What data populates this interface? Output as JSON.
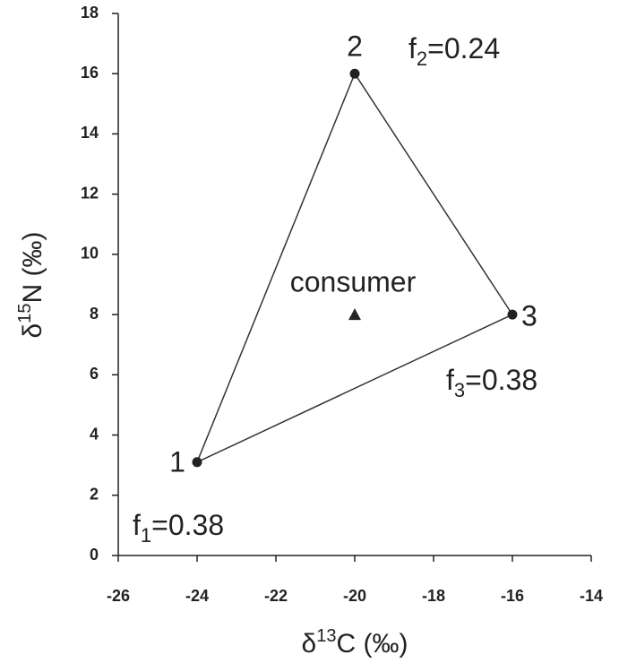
{
  "chart_data": {
    "type": "scatter",
    "x_label": {
      "symbol": "δ",
      "sup": "13",
      "rest": "C (‰)"
    },
    "y_label": {
      "symbol": "δ",
      "sup": "15",
      "rest": "N (‰)"
    },
    "xlim": [
      -26,
      -14
    ],
    "xticks": [
      -26,
      -24,
      -22,
      -20,
      -18,
      -16,
      -14
    ],
    "ylim": [
      0,
      18
    ],
    "yticks": [
      0,
      2,
      4,
      6,
      8,
      10,
      12,
      14,
      16,
      18
    ],
    "sources": {
      "labels": [
        "1",
        "2",
        "3"
      ],
      "x": [
        -24,
        -20,
        -16
      ],
      "y": [
        3.1,
        16,
        8
      ],
      "color": "#222222"
    },
    "consumer": {
      "label": "consumer",
      "x": -20,
      "y": 8,
      "color": "#222222"
    },
    "annotations": [
      {
        "symbol": "f",
        "sub": "1",
        "text": "=0.38"
      },
      {
        "symbol": "f",
        "sub": "2",
        "text": "=0.24"
      },
      {
        "symbol": "f",
        "sub": "3",
        "text": "=0.38"
      }
    ]
  }
}
